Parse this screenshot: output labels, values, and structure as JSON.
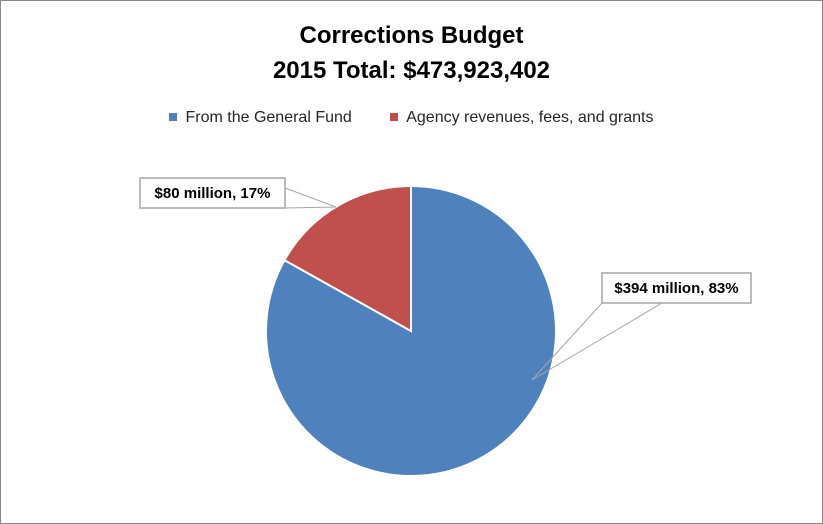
{
  "chart_data": {
    "type": "pie",
    "title": "Corrections Budget",
    "subtitle": "2015 Total: $473,923,402",
    "legend_position": "top",
    "slices": [
      {
        "name": "From the General Fund",
        "value": 394,
        "percent": 83,
        "label": "$394 million, 83%",
        "color": "#4F81BD"
      },
      {
        "name": "Agency revenues, fees, and grants",
        "value": 80,
        "percent": 17,
        "label": "$80 million, 17%",
        "color": "#C0504D"
      }
    ]
  }
}
